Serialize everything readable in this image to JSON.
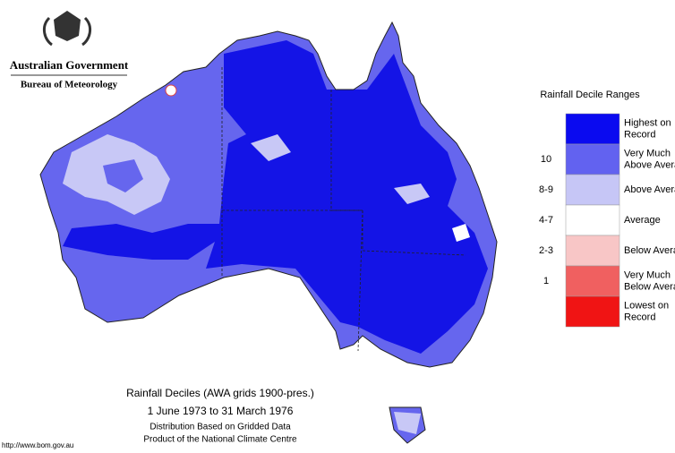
{
  "header": {
    "agency": "Australian Government",
    "bureau": "Bureau of Meteorology"
  },
  "legend": {
    "title": "Rainfall Decile Ranges",
    "items": [
      {
        "lines": [
          "Highest on",
          "Record"
        ],
        "color": "#0a0af0"
      },
      {
        "range": "10",
        "lines": [
          "Very Much",
          "Above Average"
        ],
        "color": "#6262f0"
      },
      {
        "range": "8-9",
        "lines": [
          "Above Average"
        ],
        "color": "#c6c6f6"
      },
      {
        "range": "4-7",
        "lines": [
          "Average"
        ],
        "color": "#ffffff"
      },
      {
        "range": "2-3",
        "lines": [
          "Below Average"
        ],
        "color": "#f8c6c6"
      },
      {
        "range": "1",
        "lines": [
          "Very Much",
          "Below Average"
        ],
        "color": "#f06060"
      },
      {
        "lines": [
          "Lowest on",
          "Record"
        ],
        "color": "#f01414"
      }
    ]
  },
  "caption": {
    "title": "Rainfall Deciles (AWA grids 1900-pres.)",
    "period": "1 June 1973 to 31 March 1976",
    "note": "Distribution Based on Gridded Data",
    "producer": "Product of the National Climate Centre"
  },
  "footer": {
    "url": "http://www.bom.gov.au"
  }
}
